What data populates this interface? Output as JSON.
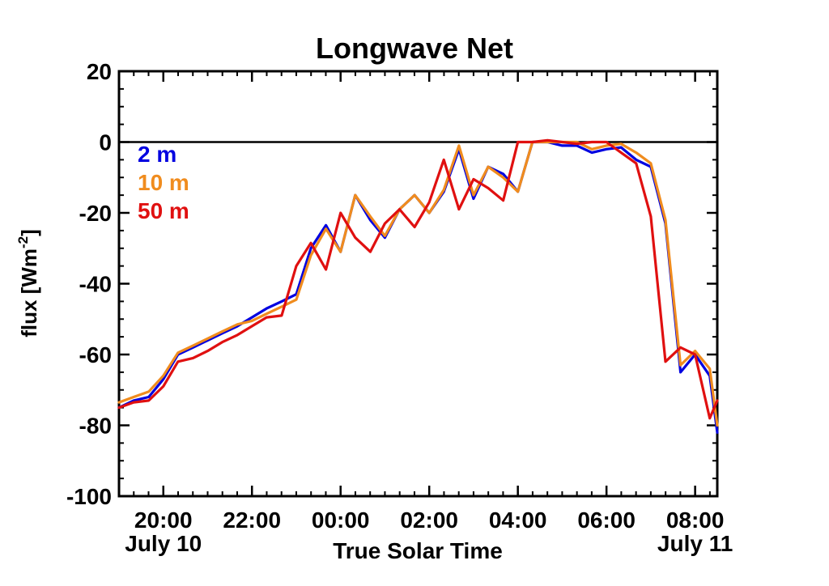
{
  "chart_data": {
    "type": "line",
    "title": "Longwave Net",
    "xlabel": "True Solar Time",
    "ylabel_main": "flux [Wm",
    "ylabel_sup": "-2",
    "ylabel_close": "]",
    "xlim": [
      19.0,
      32.5
    ],
    "ylim": [
      -100,
      20
    ],
    "x_ticks": [
      {
        "x": 20,
        "label": "20:00"
      },
      {
        "x": 22,
        "label": "22:00"
      },
      {
        "x": 24,
        "label": "00:00"
      },
      {
        "x": 26,
        "label": "02:00"
      },
      {
        "x": 28,
        "label": "04:00"
      },
      {
        "x": 30,
        "label": "06:00"
      },
      {
        "x": 32,
        "label": "08:00"
      }
    ],
    "y_ticks": [
      {
        "y": 20,
        "label": "20"
      },
      {
        "y": 0,
        "label": "0"
      },
      {
        "y": -20,
        "label": "-20"
      },
      {
        "y": -40,
        "label": "-40"
      },
      {
        "y": -60,
        "label": "-60"
      },
      {
        "y": -80,
        "label": "-80"
      },
      {
        "y": -100,
        "label": "-100"
      }
    ],
    "date_labels": [
      {
        "x": 20,
        "label": "July 10"
      },
      {
        "x": 32,
        "label": "July 11"
      }
    ],
    "reference_line": 0,
    "legend_position": "top-left",
    "x": [
      19.0,
      19.33,
      19.67,
      20.0,
      20.33,
      20.67,
      21.0,
      21.33,
      21.67,
      22.0,
      22.33,
      22.67,
      23.0,
      23.33,
      23.67,
      24.0,
      24.33,
      24.67,
      25.0,
      25.33,
      25.67,
      26.0,
      26.33,
      26.67,
      27.0,
      27.33,
      27.67,
      28.0,
      28.33,
      28.67,
      29.0,
      29.33,
      29.67,
      30.0,
      30.33,
      30.67,
      31.0,
      31.33,
      31.67,
      32.0,
      32.33,
      32.5
    ],
    "series": [
      {
        "name": "2 m",
        "color": "#0000e0",
        "values": [
          -75,
          -73,
          -72,
          -67,
          -60,
          -58,
          -56,
          -54,
          -52,
          -49.5,
          -47,
          -45,
          -43,
          -30,
          -23.5,
          -31,
          -15,
          -22,
          -27,
          -19,
          -15,
          -20,
          -14,
          -2,
          -16,
          -7,
          -9,
          -14,
          0,
          0,
          -1,
          -1,
          -3,
          -2,
          -1.5,
          -5,
          -7,
          -23,
          -65,
          -60,
          -66,
          -82
        ]
      },
      {
        "name": "10 m",
        "color": "#f08c1e",
        "values": [
          -73.5,
          -72,
          -70.5,
          -66,
          -59.5,
          -57.5,
          -55.5,
          -53.5,
          -51.5,
          -50.5,
          -48.5,
          -46.5,
          -44.5,
          -32,
          -24.5,
          -31,
          -15,
          -21,
          -26.5,
          -19,
          -15,
          -20,
          -13.5,
          -1,
          -15,
          -7,
          -10,
          -14,
          0,
          0,
          0,
          0,
          -2,
          -1,
          -0.5,
          -3,
          -6,
          -22,
          -63,
          -59,
          -64,
          -80
        ]
      },
      {
        "name": "50 m",
        "color": "#e01010",
        "values": [
          -75,
          -73.5,
          -73,
          -69,
          -62,
          -61,
          -59,
          -56.5,
          -54.5,
          -52,
          -49.5,
          -49,
          -35,
          -28.5,
          -36,
          -20,
          -27,
          -31,
          -23,
          -19,
          -24,
          -17,
          -5,
          -19,
          -10.5,
          -13,
          -16.5,
          0,
          0,
          0.5,
          0,
          -0.5,
          0,
          0,
          -3,
          -6,
          -21,
          -62,
          -58,
          -60,
          -78,
          -73
        ]
      }
    ]
  }
}
